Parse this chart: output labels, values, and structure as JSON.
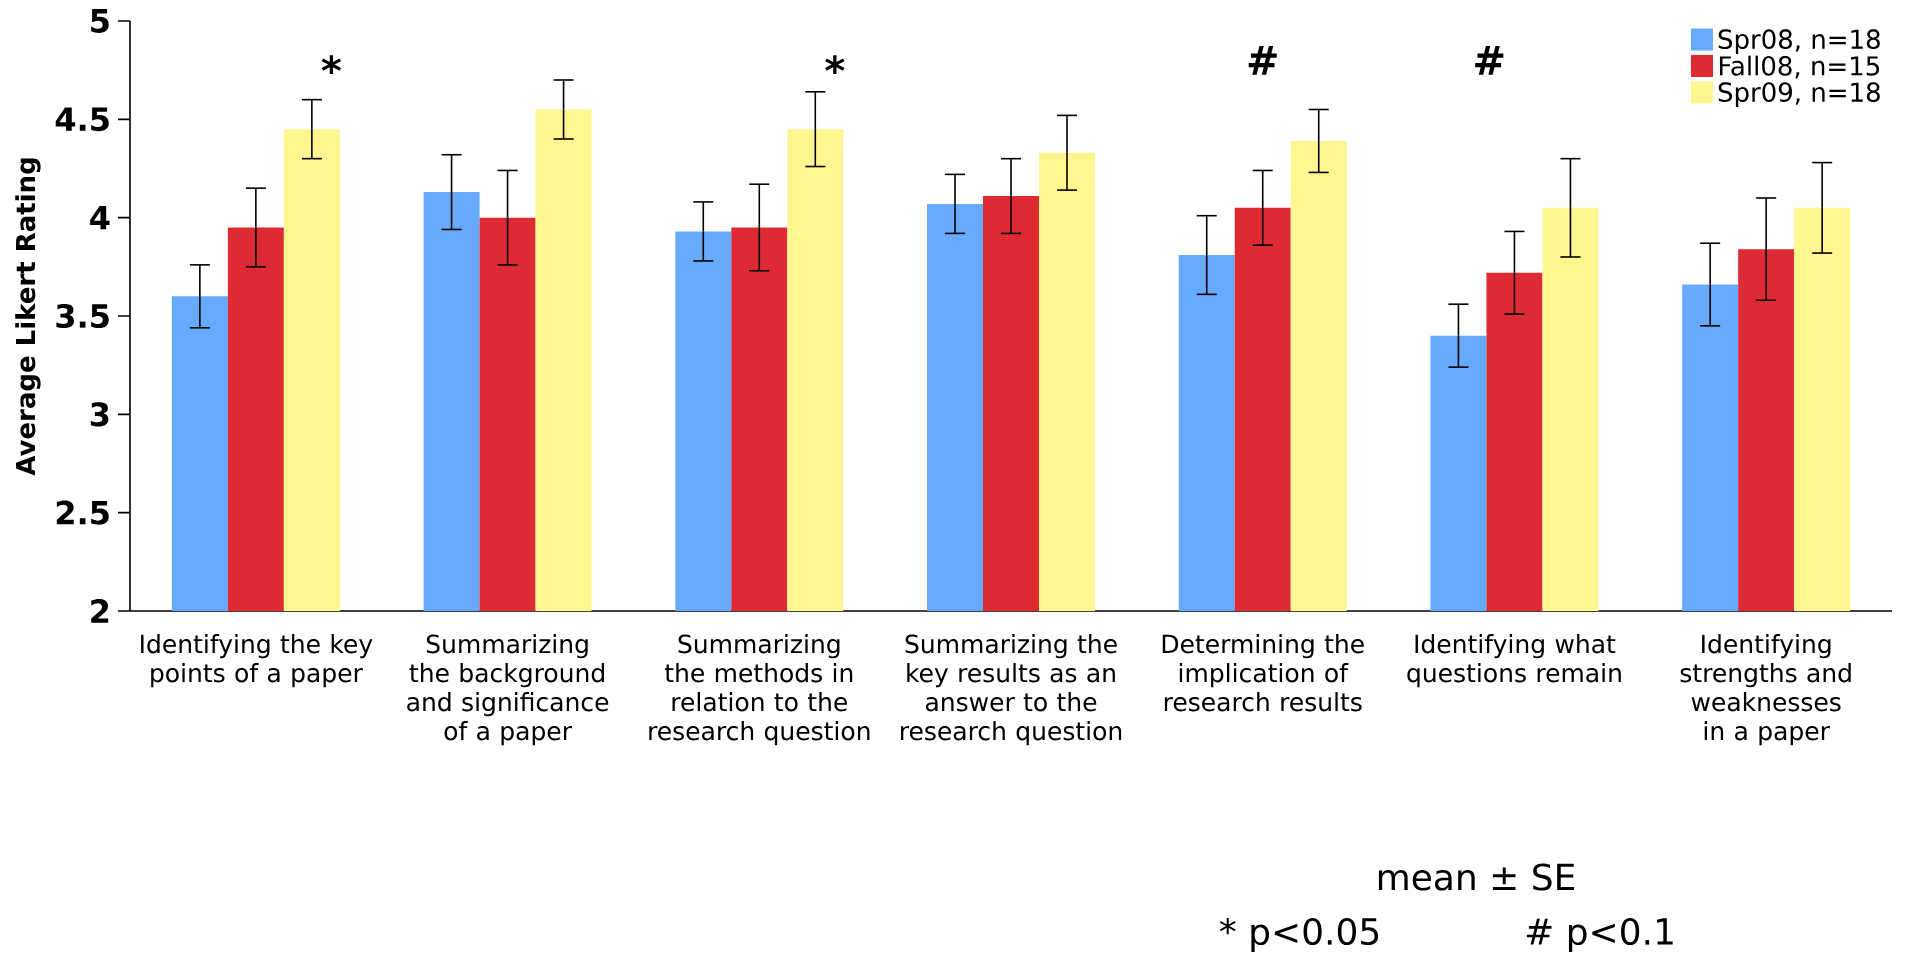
{
  "chart_data": {
    "type": "bar",
    "ylabel": "Average Likert Rating",
    "categories": [
      "Identifying the key points of a paper",
      "Summarizing the background and significance of a paper",
      "Summarizing the methods in relation to the research question",
      "Summarizing the key results as an answer to the research question",
      "Determining the implication of research results",
      "Identifying what questions remain",
      "Identifying strengths and weaknesses in a paper"
    ],
    "series": [
      {
        "name": "Spr08, n=18",
        "color": "#66aaff",
        "values": [
          3.6,
          4.13,
          3.93,
          4.07,
          3.81,
          3.4,
          3.66
        ],
        "errors": [
          0.16,
          0.19,
          0.15,
          0.15,
          0.2,
          0.16,
          0.21
        ]
      },
      {
        "name": "Fall08, n=15",
        "color": "#dd2a33",
        "values": [
          3.95,
          4.0,
          3.95,
          4.11,
          4.05,
          3.72,
          3.84
        ],
        "errors": [
          0.2,
          0.24,
          0.22,
          0.19,
          0.19,
          0.21,
          0.26
        ]
      },
      {
        "name": "Spr09, n=18",
        "color": "#fff68f",
        "values": [
          4.45,
          4.55,
          4.45,
          4.33,
          4.39,
          4.05,
          4.05
        ],
        "errors": [
          0.15,
          0.15,
          0.19,
          0.19,
          0.16,
          0.25,
          0.23
        ]
      }
    ],
    "ylim": [
      2,
      5
    ],
    "yticks": [
      2,
      2.5,
      3,
      3.5,
      4,
      4.5,
      5
    ],
    "legend": "top right",
    "grid": false,
    "annotations": [
      "*",
      "*",
      "#",
      "#",
      "mean ± SE",
      "* p<0.05",
      "# p<0.1"
    ]
  }
}
